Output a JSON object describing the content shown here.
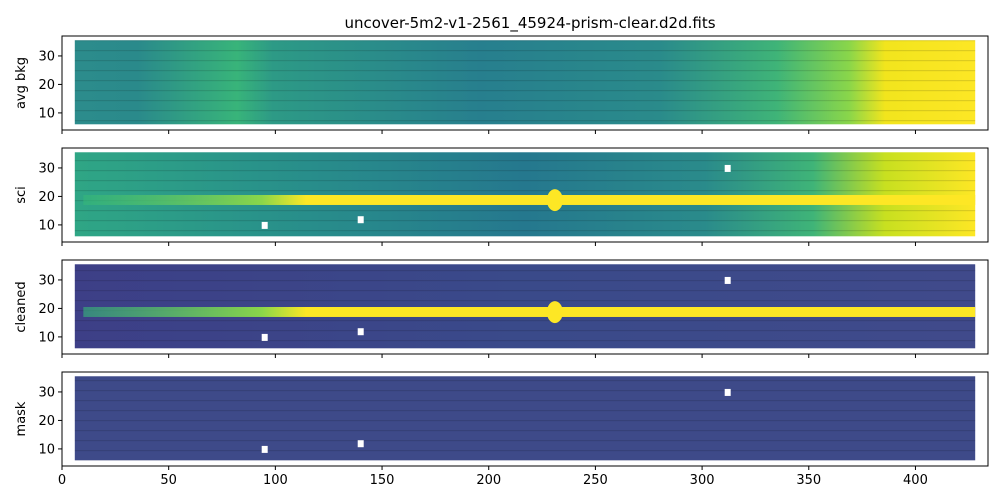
{
  "figure": {
    "title": "uncover-5m2-v1-2561_45924-prism-clear.d2d.fits"
  },
  "chart_data": [
    {
      "type": "heatmap",
      "ylabel": "avg bkg",
      "xlim": [
        0,
        434
      ],
      "ylim": [
        4,
        37
      ],
      "yticks": [
        10,
        20,
        30
      ],
      "colormap": "viridis",
      "content": "background spectrum, bright toward high x"
    },
    {
      "type": "heatmap",
      "ylabel": "sci",
      "xlim": [
        0,
        434
      ],
      "ylim": [
        4,
        37
      ],
      "yticks": [
        10,
        20,
        30
      ],
      "colormap": "viridis",
      "content": "science frame, bright trace at y~18-19"
    },
    {
      "type": "heatmap",
      "ylabel": "cleaned",
      "xlim": [
        0,
        434
      ],
      "ylim": [
        4,
        37
      ],
      "yticks": [
        10,
        20,
        30
      ],
      "colormap": "viridis",
      "content": "background-subtracted frame, bright trace at y~18-19"
    },
    {
      "type": "heatmap",
      "ylabel": "mask",
      "xlim": [
        0,
        434
      ],
      "ylim": [
        4,
        37
      ],
      "yticks": [
        10,
        20,
        30
      ],
      "colormap": "viridis",
      "content": "mask frame, uniformly low"
    }
  ],
  "x_axis": {
    "ticks": [
      0,
      50,
      100,
      150,
      200,
      250,
      300,
      350,
      400
    ]
  }
}
